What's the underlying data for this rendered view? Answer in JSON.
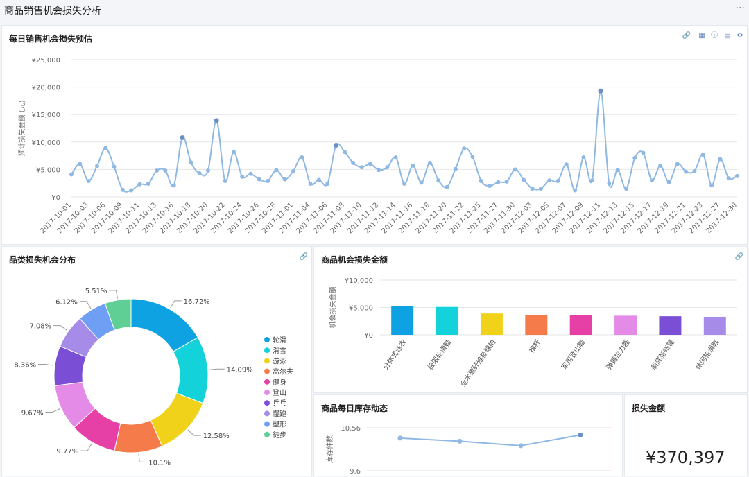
{
  "page": {
    "title": "商品销售机会损失分析",
    "more": "···"
  },
  "panels": {
    "daily": {
      "title": "每日销售机会损失预估",
      "ylabel": "预计损失金额 (元)"
    },
    "category": {
      "title": "品类损失机会分布"
    },
    "product": {
      "title": "商品机会损失金额",
      "ylabel": "机会损失金额"
    },
    "stock": {
      "title": "商品每日库存动态",
      "ylabel": "库存件数"
    },
    "total": {
      "title": "损失金额",
      "value": "¥370,397"
    }
  },
  "icons": {
    "link": "link-icon",
    "table": "table-icon",
    "info": "info-icon",
    "export": "export-icon",
    "settings": "gear-icon"
  },
  "colors": {
    "line": "#8fb8e3",
    "line_dark": "#6a8fc7",
    "grid": "#e6e6e6"
  },
  "chart_data": [
    {
      "type": "line",
      "title": "每日销售机会损失预估",
      "ylabel": "预计损失金额 (元)",
      "ylim": [
        0,
        25000
      ],
      "yticks": [
        "¥0",
        "¥5,000",
        "¥10,000",
        "¥15,000",
        "¥20,000",
        "¥25,000"
      ],
      "xticks": [
        "2017-10-01",
        "2017-10-03",
        "2017-10-06",
        "2017-10-09",
        "2017-10-11",
        "2017-10-13",
        "2017-10-16",
        "2017-10-18",
        "2017-10-20",
        "2017-10-22",
        "2017-10-24",
        "2017-10-26",
        "2017-10-28",
        "2017-11-01",
        "2017-11-04",
        "2017-11-06",
        "2017-11-08",
        "2017-11-10",
        "2017-11-12",
        "2017-11-14",
        "2017-11-16",
        "2017-11-18",
        "2017-11-20",
        "2017-11-22",
        "2017-11-25",
        "2017-11-27",
        "2017-11-30",
        "2017-12-03",
        "2017-12-05",
        "2017-12-07",
        "2017-12-09",
        "2017-12-11",
        "2017-12-13",
        "2017-12-15",
        "2017-12-17",
        "2017-12-19",
        "2017-12-21",
        "2017-12-23",
        "2017-12-27",
        "2017-12-30"
      ],
      "values": [
        4100,
        6000,
        2900,
        5600,
        8900,
        5500,
        1300,
        1200,
        2300,
        2400,
        4800,
        4800,
        2100,
        10800,
        6300,
        4300,
        4800,
        13900,
        2900,
        8200,
        3700,
        4200,
        3200,
        2900,
        4900,
        3200,
        4700,
        7200,
        2400,
        3100,
        2400,
        9400,
        8200,
        6200,
        5400,
        6000,
        4900,
        5400,
        7200,
        2400,
        5700,
        2600,
        6200,
        3000,
        1800,
        5100,
        8800,
        7300,
        2900,
        2000,
        2700,
        2800,
        5000,
        3100,
        1500,
        1500,
        3000,
        2900,
        5900,
        1200,
        7200,
        3000,
        19300,
        2400,
        4900,
        1500,
        7100,
        8000,
        3000,
        5700,
        2700,
        6000,
        4600,
        4700,
        7700,
        2100,
        6900,
        3400,
        3800
      ]
    },
    {
      "type": "pie",
      "title": "品类损失机会分布",
      "labels": [
        "轮滑",
        "滑雪",
        "游泳",
        "高尔夫",
        "健身",
        "登山",
        "乒乓",
        "慢跑",
        "塑形",
        "徒步"
      ],
      "values": [
        16.72,
        14.09,
        12.58,
        10.1,
        9.77,
        9.67,
        8.36,
        7.08,
        6.12,
        5.51
      ],
      "value_labels": [
        "16.72%",
        "14.09%",
        "12.58%",
        "10.1%",
        "9.77%",
        "9.67%",
        "8.36%",
        "7.08%",
        "6.12%",
        "5.51%"
      ],
      "colors": [
        "#0ea2e3",
        "#13d2da",
        "#f0d21a",
        "#f57c4a",
        "#e63fa6",
        "#e48be8",
        "#7a4fd6",
        "#a78be8",
        "#6f9ef5",
        "#5fcf96"
      ],
      "legend": "right"
    },
    {
      "type": "bar",
      "title": "商品机会损失金额",
      "ylabel": "机会损失金额",
      "ylim": [
        0,
        10000
      ],
      "yticks": [
        "¥0",
        "¥5,000",
        "¥10,000"
      ],
      "categories": [
        "分体式泳衣",
        "极限轮滑鞋",
        "全木碳纤维板球拍",
        "推杆",
        "军用登山鞋",
        "弹簧拉力器",
        "船底型帐篷",
        "休闲轮滑鞋"
      ],
      "values": [
        5200,
        5100,
        3900,
        3600,
        3600,
        3500,
        3400,
        3300
      ],
      "colors": [
        "#0ea2e3",
        "#13d2da",
        "#f0d21a",
        "#f57c4a",
        "#e63fa6",
        "#e48be8",
        "#7a4fd6",
        "#a78be8"
      ]
    },
    {
      "type": "line",
      "title": "商品每日库存动态",
      "ylabel": "库存件数",
      "ylim": [
        9.6,
        10.56
      ],
      "yticks": [
        "9.6",
        "10.56"
      ],
      "values": [
        10.33,
        10.26,
        10.16,
        10.4
      ]
    }
  ]
}
